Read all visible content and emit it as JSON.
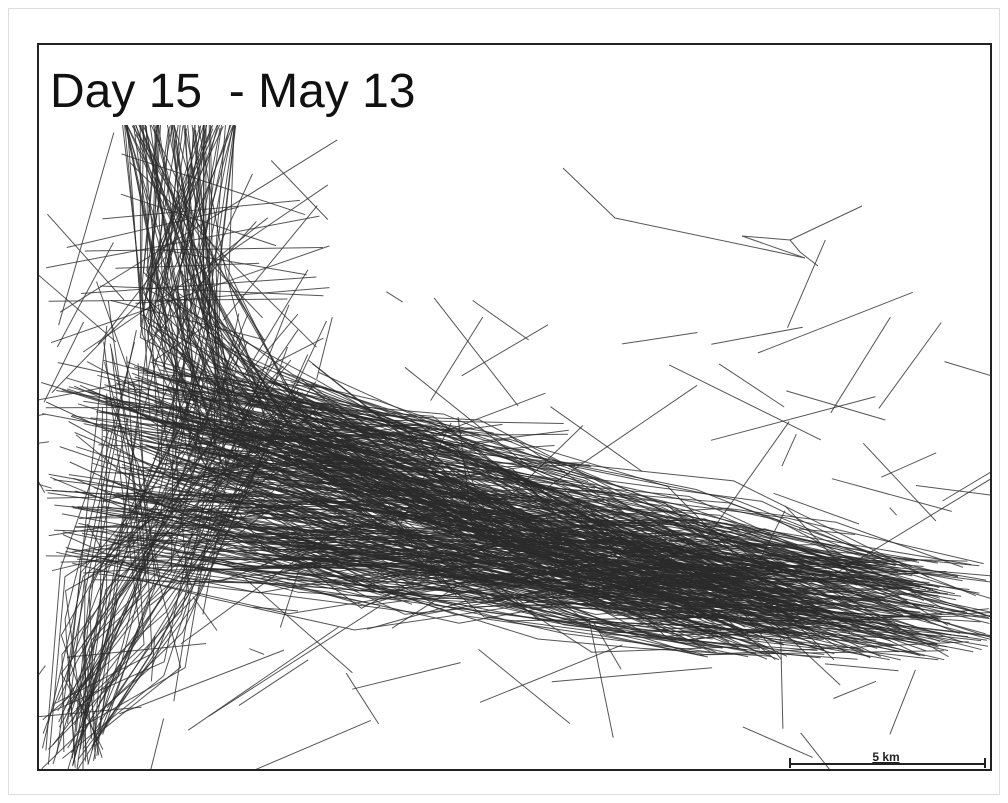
{
  "title": "Day 15  - May 13",
  "scale_bar": {
    "label": "5 km"
  }
}
